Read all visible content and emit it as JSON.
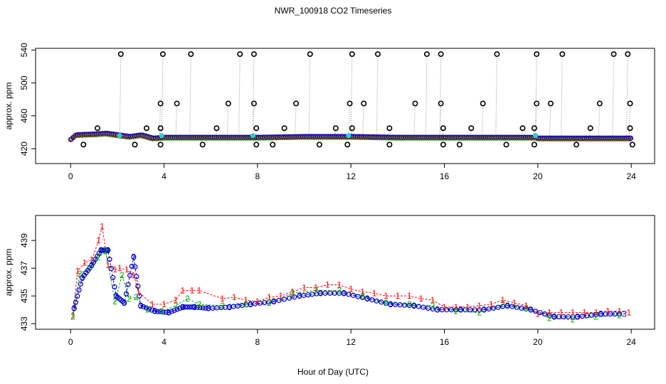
{
  "title": "NWR_100918  CO2 Timeseries",
  "x_axis_label": "Hour of Day (UTC)",
  "chart_data": [
    {
      "type": "scatter",
      "panel": "top",
      "title": "NWR_100918  CO2 Timeseries",
      "xlabel": "",
      "ylabel": "approx. ppm",
      "xlim": [
        -1.5,
        25
      ],
      "ylim": [
        402,
        542
      ],
      "x_ticks": [
        "0",
        "4",
        "8",
        "12",
        "16",
        "20",
        "24"
      ],
      "y_ticks": [
        "420",
        "460",
        "500",
        "540"
      ],
      "colors": {
        "spike": "#000000",
        "guide": "#888888",
        "series_blue": "#0000cc",
        "series_cyan": "#33cccc",
        "series_green": "#00aa00",
        "series_red": "#ff0000"
      },
      "baseline": {
        "x": [
          0,
          0.2,
          0.5,
          1.0,
          1.5,
          2.0,
          2.5,
          3.0,
          3.5,
          4.0,
          6.0,
          8.0,
          10.0,
          12.0,
          14.0,
          16.0,
          18.0,
          19.9,
          20.0,
          22.0,
          24.0
        ],
        "y": [
          431,
          436,
          436.5,
          437,
          438,
          436,
          434,
          436,
          432,
          433,
          433,
          433,
          434,
          434,
          433,
          433,
          433,
          433,
          432,
          432,
          432
        ]
      },
      "spikes_x": [
        2.1,
        3.9,
        5.1,
        7.2,
        7.8,
        10.2,
        12.0,
        13.1,
        15.2,
        15.8,
        18.2,
        19.9,
        21.0,
        23.2,
        23.8
      ],
      "spikes_y": [
        535,
        535,
        535,
        535,
        535,
        535,
        535,
        535,
        535,
        535,
        535,
        535,
        535,
        535,
        535
      ],
      "mid_x": [
        3.8,
        4.5,
        6.7,
        7.8,
        9.6,
        11.9,
        12.5,
        14.7,
        15.8,
        17.6,
        19.9,
        20.5,
        22.6,
        23.9
      ],
      "mid_y": [
        475,
        475,
        475,
        475,
        475,
        475,
        475,
        475,
        475,
        475,
        475,
        475,
        475,
        475
      ],
      "low_x": [
        1.1,
        3.2,
        3.8,
        6.2,
        7.9,
        9.1,
        11.3,
        12.0,
        13.6,
        15.9,
        17.1,
        19.3,
        19.8,
        22.2,
        23.9
      ],
      "low_y": [
        445,
        445,
        445,
        445,
        445,
        445,
        445,
        445,
        445,
        445,
        445,
        445,
        445,
        445,
        445
      ],
      "dip_x": [
        0.5,
        2.7,
        3.8,
        5.6,
        7.9,
        8.6,
        10.6,
        11.8,
        13.6,
        15.9,
        16.6,
        18.6,
        19.8,
        21.6,
        24.0
      ],
      "dip_y": [
        425,
        425,
        425,
        425,
        425,
        425,
        425,
        425,
        425,
        425,
        425,
        425,
        425,
        425,
        425
      ]
    },
    {
      "type": "scatter",
      "panel": "bottom",
      "xlabel": "Hour of Day (UTC)",
      "ylabel": "approx. ppm",
      "xlim": [
        -1.5,
        25
      ],
      "ylim": [
        432.6,
        440.8
      ],
      "x_ticks": [
        "0",
        "4",
        "8",
        "12",
        "16",
        "20",
        "24"
      ],
      "y_ticks": [
        "433",
        "435",
        "437",
        "439"
      ],
      "marker_labels": [
        "1",
        "2",
        "3"
      ],
      "series": [
        {
          "name": "1",
          "color": "#ff0000",
          "x": [
            0.1,
            0.3,
            0.6,
            0.9,
            1.2,
            1.35,
            1.6,
            1.9,
            2.1,
            2.4,
            2.7,
            2.9,
            3.5,
            4.0,
            4.5,
            4.8,
            5.2,
            5.5,
            6.5,
            7.0,
            7.5,
            8.0,
            8.5,
            9.0,
            9.5,
            10.0,
            10.5,
            11.0,
            11.5,
            12.0,
            12.5,
            13.0,
            13.5,
            14.0,
            14.5,
            15.0,
            15.5,
            16.0,
            16.5,
            17.0,
            17.5,
            18.0,
            18.5,
            19.0,
            19.5,
            20.0,
            20.5,
            21.0,
            21.5,
            22.0,
            22.5,
            23.0,
            23.5,
            23.9
          ],
          "y": [
            433.6,
            436.8,
            437.4,
            437.6,
            439.0,
            440.0,
            437.2,
            436.9,
            437.0,
            436.9,
            436.5,
            435.3,
            434.4,
            434.4,
            434.7,
            435.4,
            435.4,
            435.4,
            434.8,
            434.9,
            434.7,
            434.6,
            434.9,
            435.0,
            435.3,
            435.6,
            435.6,
            435.8,
            435.8,
            435.5,
            435.3,
            435.2,
            435.0,
            435.0,
            435.0,
            434.8,
            434.7,
            434.2,
            434.2,
            434.2,
            434.3,
            434.4,
            434.7,
            434.5,
            434.3,
            433.7,
            433.8,
            433.8,
            433.8,
            433.8,
            433.8,
            433.9,
            433.9,
            433.8
          ]
        },
        {
          "name": "2",
          "color": "#00aa00",
          "x": [
            0.1,
            0.4,
            0.8,
            1.2,
            1.5,
            1.9,
            2.2,
            2.5,
            2.8,
            3.3,
            3.9,
            4.5,
            5.0,
            5.5,
            6.5,
            7.5,
            8.5,
            9.5,
            10.5,
            11.5,
            12.5,
            13.5,
            14.5,
            15.5,
            16.5,
            17.5,
            18.5,
            19.5,
            20.5,
            21.5,
            22.5,
            23.5
          ],
          "y": [
            433.5,
            436.6,
            437.0,
            437.8,
            438.2,
            434.6,
            436.5,
            434.8,
            434.9,
            434.0,
            433.9,
            434.3,
            434.8,
            434.4,
            434.3,
            434.4,
            434.5,
            435.2,
            435.4,
            435.4,
            435.0,
            434.5,
            434.4,
            434.3,
            433.9,
            433.8,
            434.4,
            434.1,
            433.4,
            433.3,
            433.5,
            433.6
          ]
        },
        {
          "name": "3",
          "color": "#0000cc",
          "x": [
            0.15,
            0.5,
            0.9,
            1.3,
            1.6,
            1.95,
            2.3,
            2.7,
            3.0,
            3.6,
            4.2,
            4.8,
            5.3,
            5.9,
            6.8,
            7.7,
            8.7,
            9.8,
            10.7,
            11.7,
            12.7,
            13.7,
            14.7,
            15.7,
            16.7,
            17.7,
            18.7,
            19.7,
            20.7,
            21.7,
            22.7,
            23.7
          ],
          "y": [
            434.1,
            436.3,
            437.2,
            438.3,
            438.3,
            435.0,
            434.5,
            437.8,
            434.3,
            433.9,
            433.8,
            434.2,
            434.2,
            434.1,
            434.2,
            434.4,
            434.6,
            435.0,
            435.2,
            435.2,
            434.8,
            434.4,
            434.3,
            434.0,
            434.0,
            434.0,
            434.3,
            434.0,
            433.5,
            433.5,
            433.7,
            433.7
          ]
        }
      ]
    }
  ]
}
